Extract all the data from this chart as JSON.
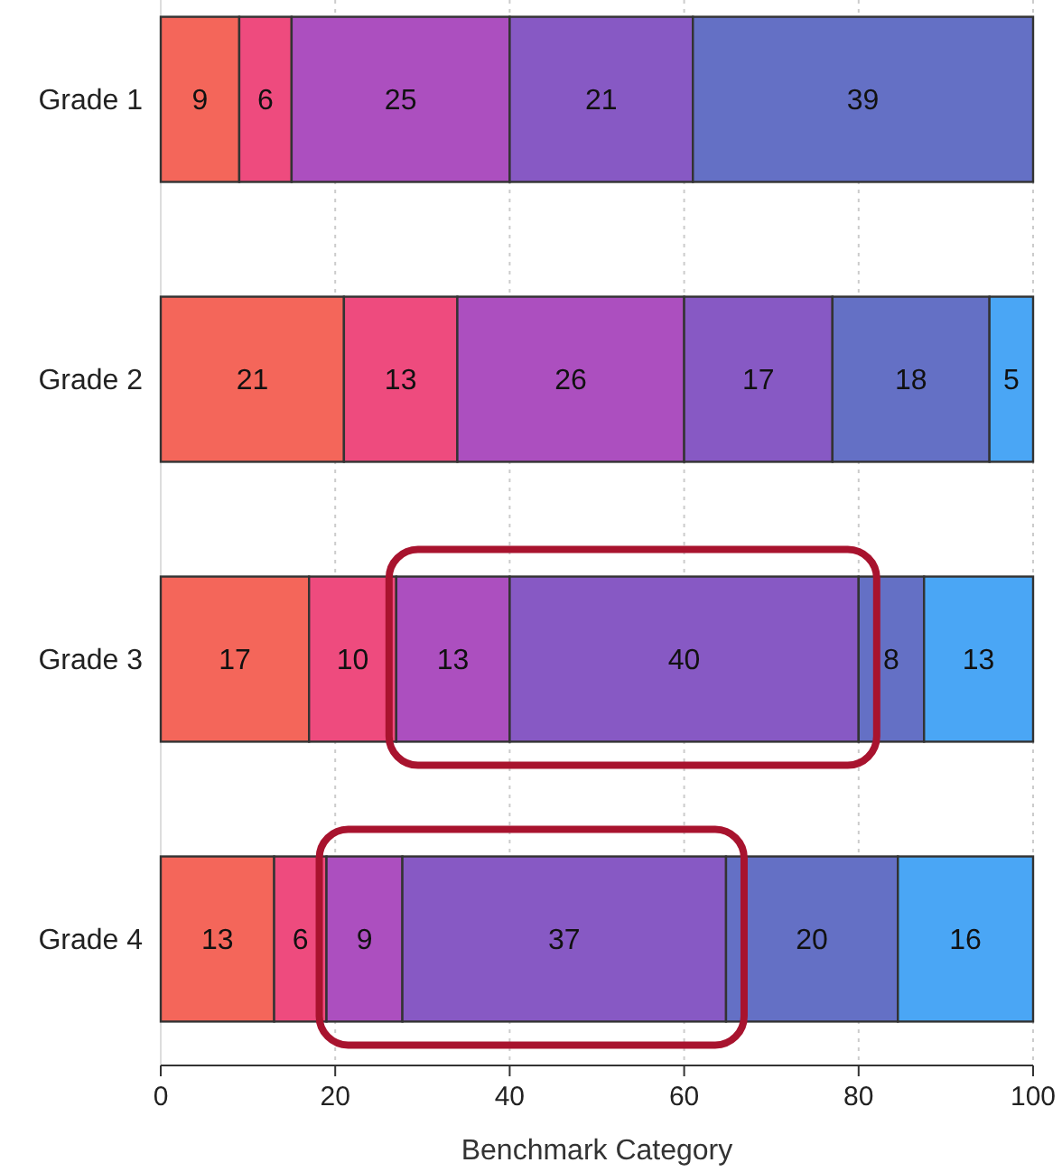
{
  "chart_data": {
    "type": "bar",
    "orientation": "horizontal",
    "stacked": true,
    "xlabel": "Benchmark Category",
    "categories": [
      "Grade 1",
      "Grade 2",
      "Grade 3",
      "Grade 4"
    ],
    "series": [
      {
        "color": "#f4665a",
        "values": [
          9,
          21,
          17,
          13
        ]
      },
      {
        "color": "#ee4b7e",
        "values": [
          6,
          13,
          10,
          6
        ]
      },
      {
        "color": "#ac4fbf",
        "values": [
          25,
          26,
          13,
          8.7
        ],
        "value_labels": [
          "25",
          "26",
          "13",
          "9"
        ]
      },
      {
        "color": "#8759c4",
        "values": [
          21,
          17,
          40,
          37.1
        ],
        "value_labels": [
          "21",
          "17",
          "40",
          "37"
        ]
      },
      {
        "color": "#6470c5",
        "values": [
          39,
          18,
          7.5,
          19.7
        ],
        "value_labels": [
          "39",
          "18",
          "8",
          "20"
        ]
      },
      {
        "color": "#4aa6f5",
        "values": [
          null,
          5,
          12.5,
          15.5
        ],
        "value_labels": [
          null,
          "5",
          "13",
          "16"
        ]
      }
    ],
    "xlim": [
      0,
      100
    ],
    "xticks": [
      0,
      20,
      40,
      60,
      80,
      100
    ],
    "grid": "x",
    "data_labels": true
  }
}
